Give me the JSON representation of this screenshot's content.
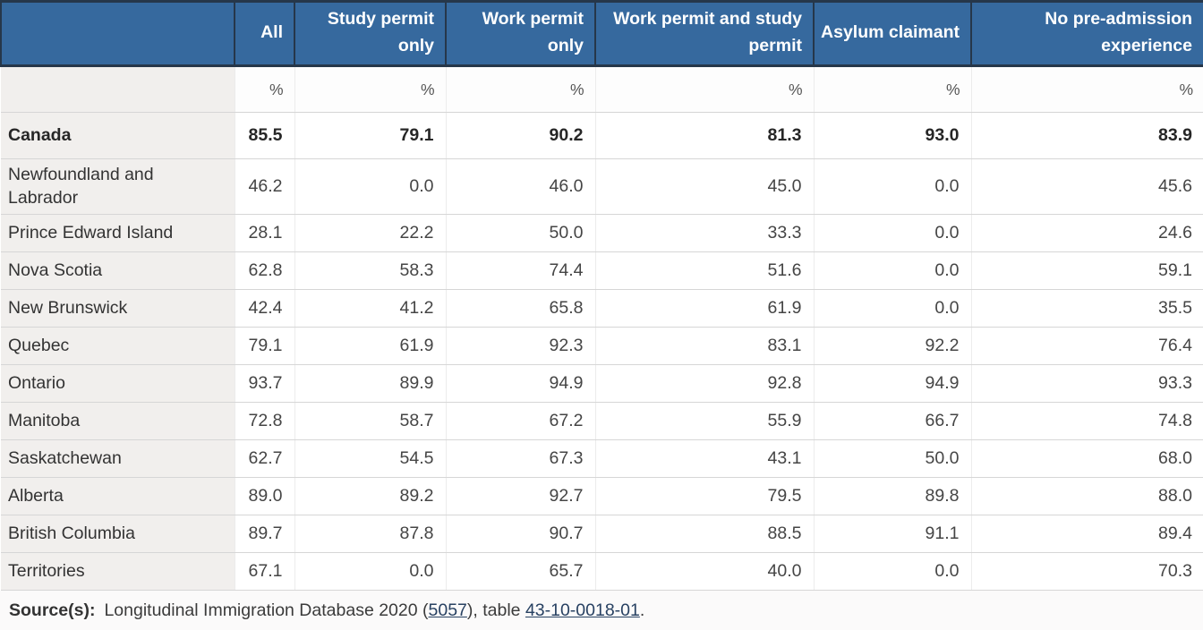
{
  "chart_data": {
    "type": "table",
    "columns": [
      "",
      "All",
      "Study permit only",
      "Work permit only",
      "Work permit and study permit",
      "Asylum claimant",
      "No pre-admission experience"
    ],
    "unit_row": [
      "%",
      "%",
      "%",
      "%",
      "%",
      "%"
    ],
    "rows": [
      {
        "label": "Canada",
        "bold": true,
        "values": [
          "85.5",
          "79.1",
          "90.2",
          "81.3",
          "93.0",
          "83.9"
        ]
      },
      {
        "label": "Newfoundland and Labrador",
        "bold": false,
        "values": [
          "46.2",
          "0.0",
          "46.0",
          "45.0",
          "0.0",
          "45.6"
        ]
      },
      {
        "label": "Prince Edward Island",
        "bold": false,
        "values": [
          "28.1",
          "22.2",
          "50.0",
          "33.3",
          "0.0",
          "24.6"
        ]
      },
      {
        "label": "Nova Scotia",
        "bold": false,
        "values": [
          "62.8",
          "58.3",
          "74.4",
          "51.6",
          "0.0",
          "59.1"
        ]
      },
      {
        "label": "New Brunswick",
        "bold": false,
        "values": [
          "42.4",
          "41.2",
          "65.8",
          "61.9",
          "0.0",
          "35.5"
        ]
      },
      {
        "label": "Quebec",
        "bold": false,
        "values": [
          "79.1",
          "61.9",
          "92.3",
          "83.1",
          "92.2",
          "76.4"
        ]
      },
      {
        "label": "Ontario",
        "bold": false,
        "values": [
          "93.7",
          "89.9",
          "94.9",
          "92.8",
          "94.9",
          "93.3"
        ]
      },
      {
        "label": "Manitoba",
        "bold": false,
        "values": [
          "72.8",
          "58.7",
          "67.2",
          "55.9",
          "66.7",
          "74.8"
        ]
      },
      {
        "label": "Saskatchewan",
        "bold": false,
        "values": [
          "62.7",
          "54.5",
          "67.3",
          "43.1",
          "50.0",
          "68.0"
        ]
      },
      {
        "label": "Alberta",
        "bold": false,
        "values": [
          "89.0",
          "89.2",
          "92.7",
          "79.5",
          "89.8",
          "88.0"
        ]
      },
      {
        "label": "British Columbia",
        "bold": false,
        "values": [
          "89.7",
          "87.8",
          "90.7",
          "88.5",
          "91.1",
          "89.4"
        ]
      },
      {
        "label": "Territories",
        "bold": false,
        "values": [
          "67.1",
          "0.0",
          "65.7",
          "40.0",
          "0.0",
          "70.3"
        ]
      }
    ]
  },
  "source": {
    "prefix": "Source(s):",
    "text_before": "Longitudinal Immigration Database 2020 (",
    "link_survey": "5057",
    "text_middle": "), table ",
    "link_table": "43-10-0018-01",
    "text_after": "."
  },
  "colors": {
    "header_bg": "#36699e",
    "header_border": "#26374a",
    "row_label_bg": "#f1efed",
    "grid_line": "#d6d6d6",
    "link": "#284162"
  }
}
